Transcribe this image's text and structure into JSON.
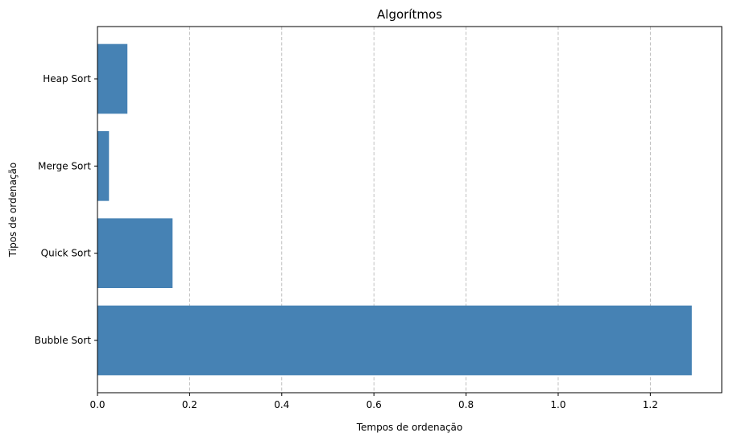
{
  "chart_data": {
    "type": "bar",
    "orientation": "horizontal",
    "title": "Algorítmos",
    "xlabel": "Tempos de ordenação",
    "ylabel": "Tipos de ordenação",
    "categories": [
      "Bubble Sort",
      "Quick Sort",
      "Merge Sort",
      "Heap Sort"
    ],
    "values": [
      1.29,
      0.163,
      0.025,
      0.065
    ],
    "xlim": [
      0,
      1.355
    ],
    "xticks": [
      0.0,
      0.2,
      0.4,
      0.6,
      0.8,
      1.0,
      1.2
    ],
    "xtick_labels": [
      "0.0",
      "0.2",
      "0.4",
      "0.6",
      "0.8",
      "1.0",
      "1.2"
    ],
    "grid": "x-dashed",
    "bar_color": "#4682b4"
  }
}
